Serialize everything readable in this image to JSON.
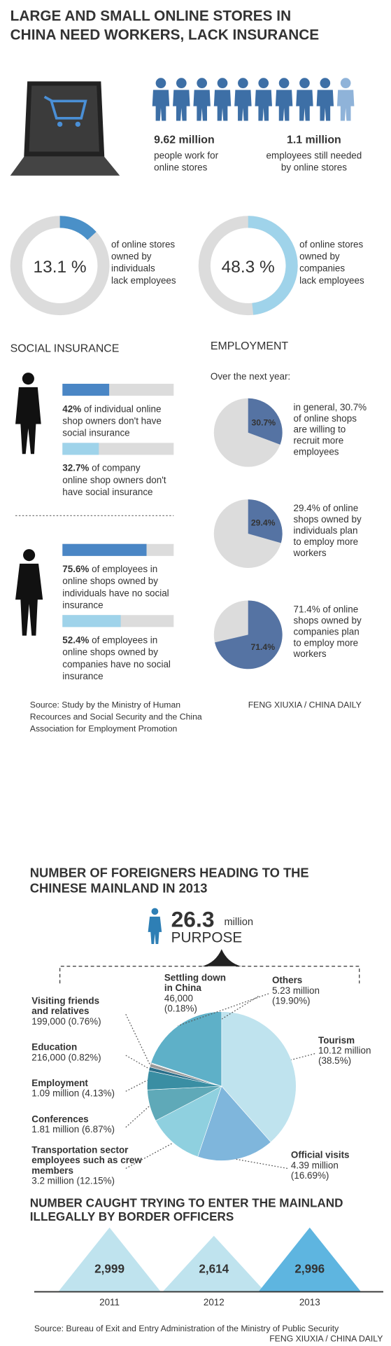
{
  "header": {
    "title_lines": [
      "LARGE AND SMALL ONLINE STORES IN",
      "CHINA NEED WORKERS, LACK INSURANCE"
    ]
  },
  "workers": [
    {
      "value": "9.62 million",
      "lines": [
        "people work for",
        "online stores"
      ]
    },
    {
      "value": "1.1 million",
      "lines": [
        "employees still needed",
        "by online stores"
      ]
    }
  ],
  "donuts": [
    {
      "value": 13.1,
      "label": "13.1 %",
      "color": "#4a90c8",
      "lines": [
        "of online stores",
        "owned by",
        "individuals",
        "lack employees"
      ]
    },
    {
      "value": 48.3,
      "label": "48.3 %",
      "color": "#9fd3ea",
      "lines": [
        "of online stores",
        "owned by",
        "companies",
        "lack employees"
      ]
    }
  ],
  "social_insurance": {
    "title": "SOCIAL INSURANCE",
    "items": [
      {
        "value": 42,
        "label": "42%",
        "color": "#4a86c5",
        "lines": [
          " of individual online",
          "shop owners don't have",
          "social insurance"
        ]
      },
      {
        "value": 32.7,
        "label": "32.7%",
        "color": "#9fd3ea",
        "lines": [
          " of company",
          "online shop owners don't",
          "have social insurance"
        ]
      },
      {
        "value": 75.6,
        "label": "75.6%",
        "color": "#4a86c5",
        "lines": [
          " of employees in",
          "online shops owned by",
          "individuals have no social",
          "insurance"
        ]
      },
      {
        "value": 52.4,
        "label": "52.4%",
        "color": "#9fd3ea",
        "lines": [
          " of employees in",
          "online shops owned by",
          "companies have no social",
          "insurance"
        ]
      }
    ]
  },
  "employment": {
    "title": "EMPLOYMENT",
    "subtitle": "Over the next year:",
    "items": [
      {
        "value": 30.7,
        "label": "30.7%",
        "lines": [
          "in general, 30.7%",
          "of online shops",
          "are willing to",
          "recruit more",
          "employees"
        ]
      },
      {
        "value": 29.4,
        "label": "29.4%",
        "lines": [
          "29.4% of online",
          "shops owned by",
          "individuals plan",
          "to employ more",
          "workers"
        ]
      },
      {
        "value": 71.4,
        "label": "71.4%",
        "lines": [
          "71.4% of online",
          "shops owned by",
          "companies plan",
          "to employ more",
          "workers"
        ]
      }
    ]
  },
  "source1": {
    "lines": [
      "Source: Study by the Ministry of Human",
      "Recources and Social Security and the China",
      "Association for Employment Promotion"
    ],
    "credit": "FENG XIUXIA / CHINA  DAILY"
  },
  "foreigners": {
    "title_lines": [
      "NUMBER OF FOREIGNERS HEADING TO THE",
      "CHINESE MAINLAND IN 2013"
    ],
    "total": "26.3",
    "unit": "million",
    "subtitle": "PURPOSE",
    "slices": [
      {
        "name": [
          "Tourism"
        ],
        "lines": [
          "10.12 million",
          "(38.5%)"
        ],
        "value": 38.5,
        "color": "#bfe3ee"
      },
      {
        "name": [
          "Official visits"
        ],
        "lines": [
          "4.39 million",
          "(16.69%)"
        ],
        "value": 16.69,
        "color": "#7fb6dc"
      },
      {
        "name": [
          "Transportation sector",
          "employees such as crew",
          "members"
        ],
        "lines": [
          "3.2 million (12.15%)"
        ],
        "value": 12.15,
        "color": "#8fd0df"
      },
      {
        "name": [
          "Conferences"
        ],
        "lines": [
          "1.81 million (6.87%)"
        ],
        "value": 6.87,
        "color": "#5fa9b8"
      },
      {
        "name": [
          "Employment"
        ],
        "lines": [
          "1.09 million (4.13%)"
        ],
        "value": 4.13,
        "color": "#3a8ea3"
      },
      {
        "name": [
          "Education"
        ],
        "lines": [
          "216,000 (0.82%)"
        ],
        "value": 0.82,
        "color": "#2b6f8a"
      },
      {
        "name": [
          "Visiting friends",
          "and relatives"
        ],
        "lines": [
          "199,000 (0.76%)"
        ],
        "value": 0.76,
        "color": "#999999"
      },
      {
        "name": [
          "Settling down",
          "in China"
        ],
        "lines": [
          "46,000",
          "(0.18%)"
        ],
        "value": 0.18,
        "color": "#dddddd"
      },
      {
        "name": [
          "Others"
        ],
        "lines": [
          "5.23 million",
          "(19.90%)"
        ],
        "value": 19.9,
        "color": "#5eb0c8"
      }
    ]
  },
  "border": {
    "title_lines": [
      "NUMBER CAUGHT TRYING TO ENTER THE MAINLAND",
      "ILLEGALLY BY BORDER OFFICERS"
    ],
    "categories": [
      "2011",
      "2012",
      "2013"
    ],
    "values": [
      2999,
      2614,
      2996
    ],
    "value_labels": [
      "2,999",
      "2,614",
      "2,996"
    ],
    "colors": [
      "#bfe3ee",
      "#bfe3ee",
      "#5eb5e0"
    ]
  },
  "footer": {
    "source": "Source: Bureau of Exit and Entry Administration of the Ministry of Public Security",
    "credit": "FENG XIUXIA / CHINA DAILY"
  }
}
